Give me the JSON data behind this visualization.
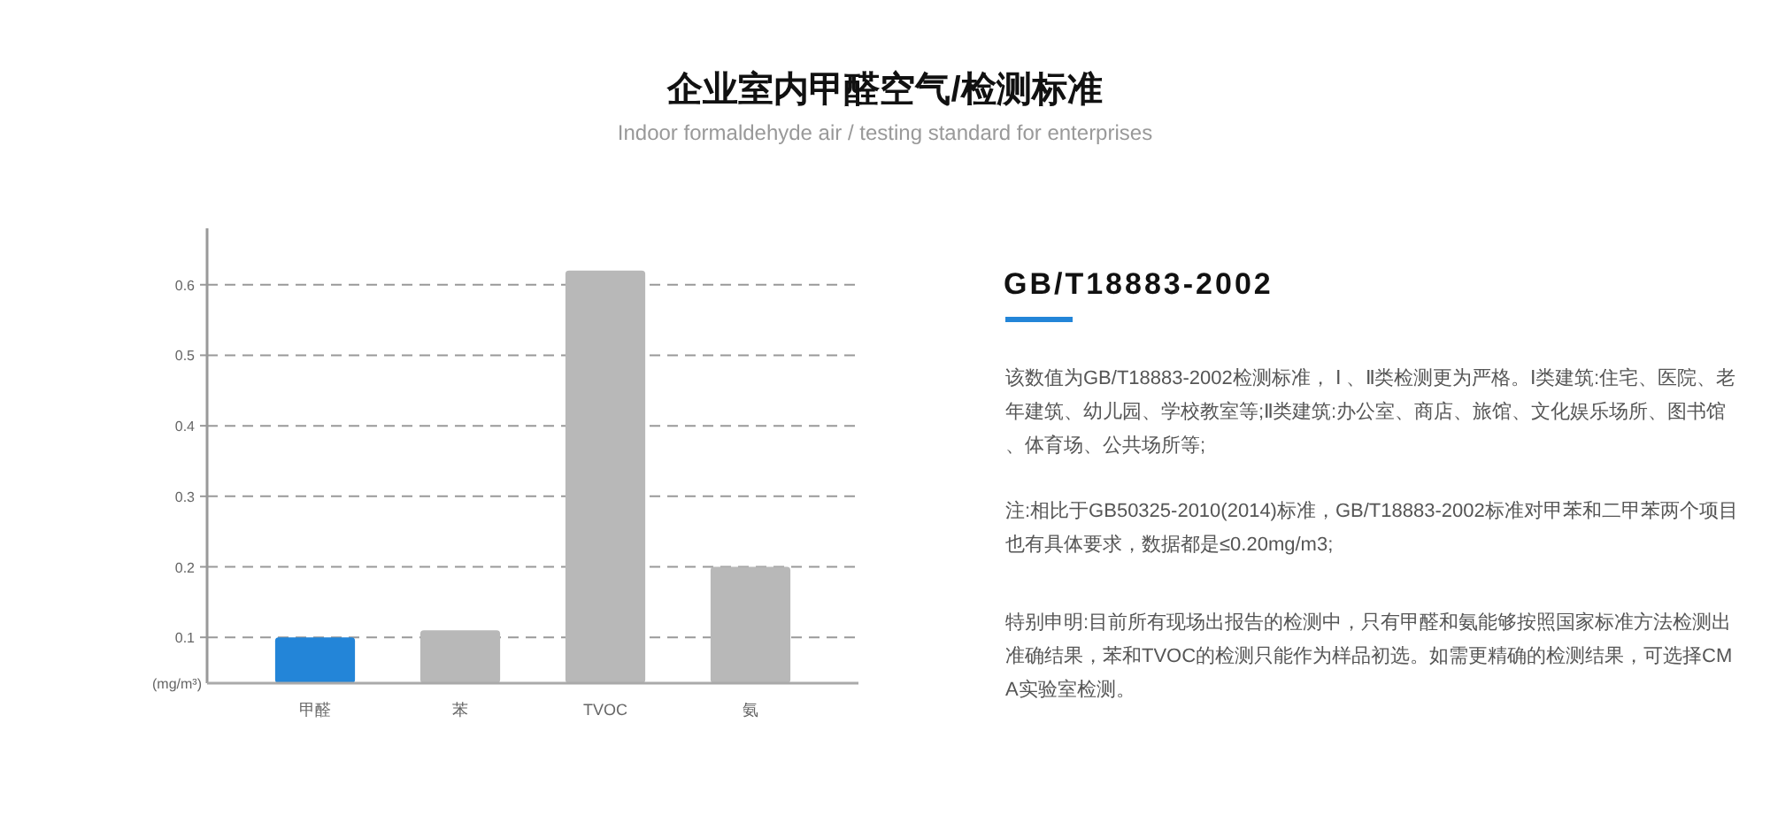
{
  "chart_data": {
    "type": "bar",
    "title": "企业室内甲醛空气/检测标准",
    "subtitle": "Indoor formaldehyde air / testing standard for enterprises",
    "ylabel": "(mg/m³)",
    "categories": [
      "甲醛",
      "苯",
      "TVOC",
      "氨"
    ],
    "values": [
      0.1,
      0.11,
      0.62,
      0.2
    ],
    "colors": [
      "#2385d8",
      "#b8b8b8",
      "#b8b8b8",
      "#b8b8b8"
    ],
    "ylim": [
      0.035,
      0.68
    ],
    "yticks": [
      0.1,
      0.2,
      0.3,
      0.4,
      0.5,
      0.6
    ],
    "grid": "y",
    "annotations": [
      "GB/T18883-2002",
      "该数值为GB/T18883-2002检测标准， Ⅰ 、Ⅱ类检测更为严格。Ⅰ类建筑:住宅、医院、老年建筑、幼儿园、学校教室等;Ⅱ类建筑:办公室、商店、旅馆、文化娱乐场所、图书馆、体育场、公共场所等;",
      "注:相比于GB50325-2010(2014)标准，GB/T18883-2002标准对甲苯和二甲苯两个项目也有具体要求，数据都是≤0.20mg/m3;",
      "特别申明:目前所有现场出报告的检测中，只有甲醛和氨能够按照国家标准方法检测出准确结果，苯和TVOC的检测只能作为样品初选。如需更精确的检测结果，可选择CMA实验室检测。"
    ]
  }
}
